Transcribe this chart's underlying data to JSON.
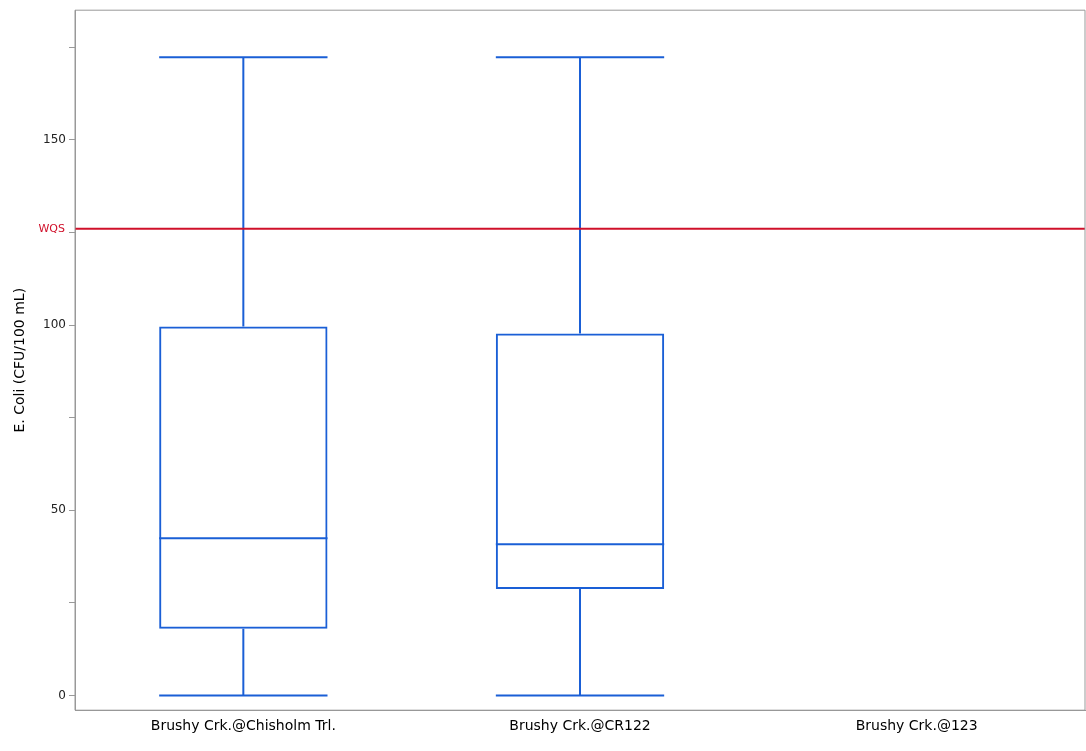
{
  "chart_data": {
    "type": "box",
    "ylabel": "E. Coli (CFU/100 mL)",
    "categories": [
      "Brushy Crk.@Chisholm Trl.",
      "Brushy Crk.@CR122",
      "Brushy Crk.@123"
    ],
    "boxes": [
      {
        "low": 0,
        "q1": 18,
        "median": 42.4,
        "q3": 99.6,
        "high": 172.3
      },
      {
        "low": 0,
        "q1": 28.7,
        "median": 40.8,
        "q3": 97.7,
        "high": 172.3
      },
      null
    ],
    "color": "#1a5fd6",
    "ylim": [
      -4,
      185
    ],
    "yticks": [
      0,
      {
        "value": 25,
        "label": null
      },
      50,
      {
        "value": 75,
        "label": null
      },
      100,
      {
        "value": 125,
        "label": null
      },
      150,
      {
        "value": 175,
        "label": null
      }
    ],
    "ref_lines": [
      {
        "axis": "y",
        "value": 126,
        "label": "WQS",
        "color": "#d0102a"
      }
    ],
    "grid": false,
    "legend": false
  }
}
